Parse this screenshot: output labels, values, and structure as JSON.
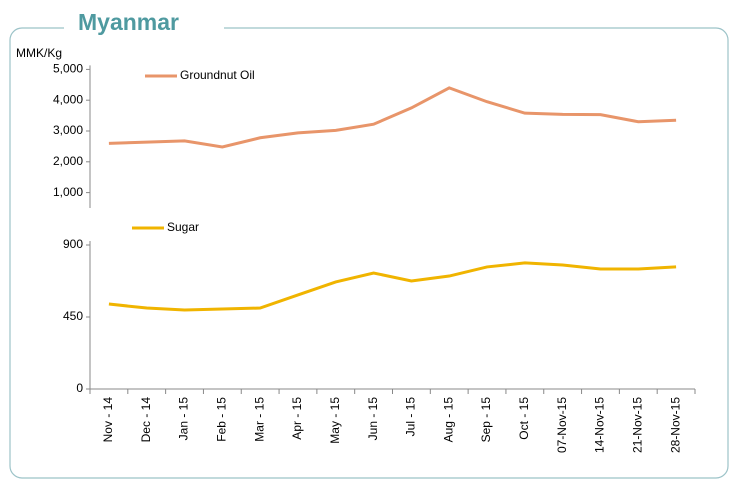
{
  "title": "Myanmar",
  "chart_data": [
    {
      "type": "line",
      "ylabel": "MMK/Kg",
      "ylim": [
        500,
        5000
      ],
      "yticks": [
        {
          "value": 1000,
          "label": "1,000"
        },
        {
          "value": 2000,
          "label": "2,000"
        },
        {
          "value": 3000,
          "label": "3,000"
        },
        {
          "value": 4000,
          "label": "4,000"
        },
        {
          "value": 5000,
          "label": "5,000"
        }
      ],
      "series": [
        {
          "name": "Groundnut Oil",
          "color": "#e8956a",
          "values": [
            2600,
            2640,
            2680,
            2480,
            2780,
            2940,
            3020,
            3220,
            3750,
            4400,
            3950,
            3580,
            3540,
            3530,
            3300,
            3350
          ]
        }
      ]
    },
    {
      "type": "line",
      "categories": [
        "Nov - 14",
        "Dec - 14",
        "Jan - 15",
        "Feb - 15",
        "Mar - 15",
        "Apr - 15",
        "May - 15",
        "Jun - 15",
        "Jul - 15",
        "Aug - 15",
        "Sep - 15",
        "Oct - 15",
        "07-Nov-15",
        "14-Nov-15",
        "21-Nov-15",
        "28-Nov-15"
      ],
      "ylim": [
        0,
        900
      ],
      "yticks": [
        0,
        450,
        900
      ],
      "series": [
        {
          "name": "Sugar",
          "color": "#f0b400",
          "values": [
            531,
            506,
            494,
            500,
            506,
            588,
            669,
            725,
            675,
            706,
            763,
            788,
            775,
            750,
            750,
            763
          ]
        }
      ]
    }
  ]
}
